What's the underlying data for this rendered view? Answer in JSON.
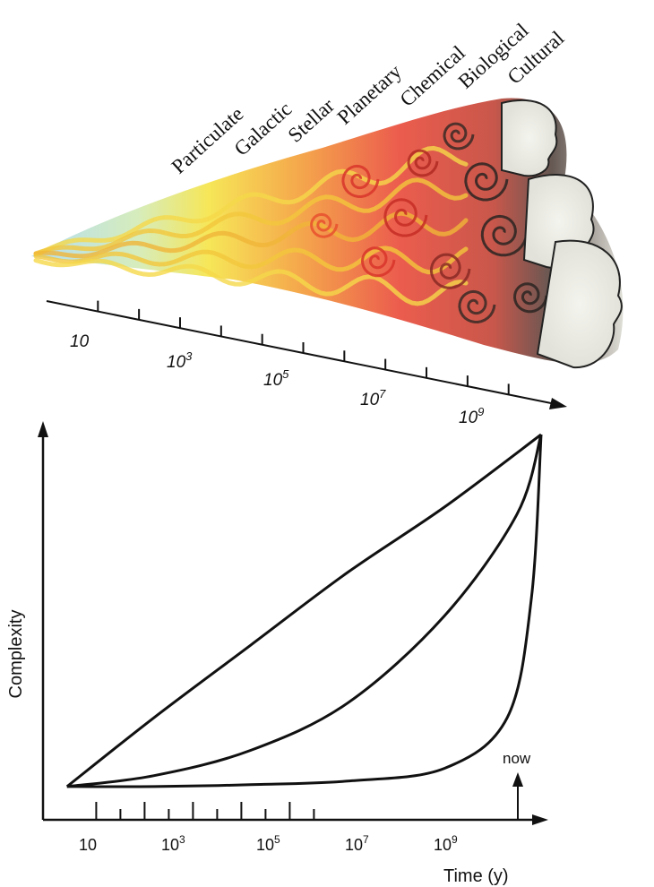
{
  "illustration": {
    "eras": [
      "Particulate",
      "Galactic",
      "Stellar",
      "Planetary",
      "Chemical",
      "Biological",
      "Cultural"
    ],
    "timeline_labels": [
      {
        "base": "10",
        "exp": ""
      },
      {
        "base": "10",
        "exp": "3"
      },
      {
        "base": "10",
        "exp": "5"
      },
      {
        "base": "10",
        "exp": "7"
      },
      {
        "base": "10",
        "exp": "9"
      }
    ],
    "colors": {
      "early": "#7fc6e8",
      "yellow": "#f5e23a",
      "orange": "#f39a2c",
      "red": "#e8402e",
      "dark": "#1a1a1a"
    }
  },
  "chart_data": {
    "type": "line",
    "xlabel": "Time (y)",
    "ylabel": "Complexity",
    "x_tick_labels": [
      {
        "base": "10",
        "exp": ""
      },
      {
        "base": "10",
        "exp": "3"
      },
      {
        "base": "10",
        "exp": "5"
      },
      {
        "base": "10",
        "exp": "7"
      },
      {
        "base": "10",
        "exp": "9"
      }
    ],
    "x_scale": "log",
    "x_range_log10": [
      0,
      10
    ],
    "annotation": "now",
    "series": [
      {
        "shape": "near-linear rise",
        "values_log10_x": [
          0.2,
          2,
          4,
          6,
          8,
          10
        ],
        "values_y": [
          0.03,
          0.22,
          0.42,
          0.62,
          0.8,
          1.0
        ]
      },
      {
        "shape": "moderate convex rise",
        "values_log10_x": [
          0.2,
          2,
          4,
          6,
          8,
          9.5,
          10
        ],
        "values_y": [
          0.03,
          0.06,
          0.13,
          0.26,
          0.5,
          0.78,
          1.0
        ]
      },
      {
        "shape": "late exponential rise",
        "values_log10_x": [
          0.2,
          2,
          4,
          6,
          8,
          9.3,
          9.8,
          10
        ],
        "values_y": [
          0.03,
          0.03,
          0.035,
          0.045,
          0.08,
          0.22,
          0.55,
          1.0
        ]
      }
    ],
    "grid": false
  }
}
